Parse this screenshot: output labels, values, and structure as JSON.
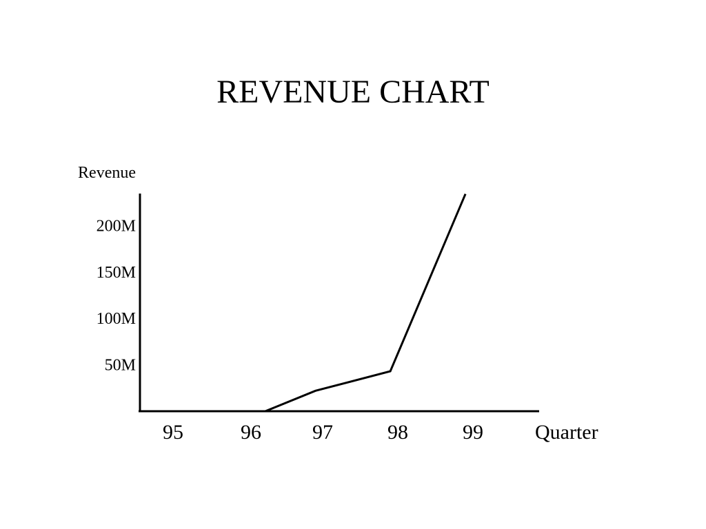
{
  "chart_data": {
    "type": "line",
    "title": "REVENUE CHART",
    "xlabel": "Quarter",
    "ylabel": "Revenue",
    "categories": [
      "95",
      "96",
      "97",
      "98",
      "99"
    ],
    "y_ticks": [
      {
        "value": 50,
        "label": "50M"
      },
      {
        "value": 100,
        "label": "100M"
      },
      {
        "value": 150,
        "label": "150M"
      },
      {
        "value": 200,
        "label": "200M"
      }
    ],
    "series": [
      {
        "points": [
          {
            "x": 95.7,
            "y": 0
          },
          {
            "x": 96.2,
            "y": 0
          },
          {
            "x": 96.9,
            "y": 22
          },
          {
            "x": 97.9,
            "y": 43
          },
          {
            "x": 98.9,
            "y": 234
          }
        ]
      }
    ],
    "ylim": [
      0,
      234
    ],
    "grid": false,
    "legend": "none",
    "line_color": "#000000"
  }
}
